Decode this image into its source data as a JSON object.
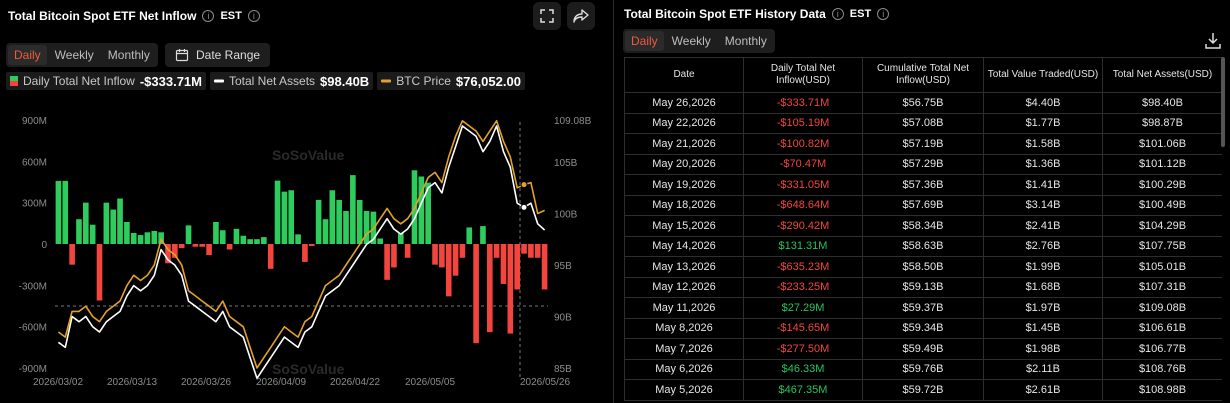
{
  "left_panel": {
    "title": "Total Bitcoin Spot ETF Net Inflow",
    "timezone": "EST",
    "tabs": [
      "Daily",
      "Weekly",
      "Monthly"
    ],
    "active_tab": "Daily",
    "date_range_label": "Date Range",
    "legend": {
      "inflow_label": "Daily Total Net Inflow",
      "inflow_value": "-$333.71M",
      "assets_label": "Total Net Assets",
      "assets_value": "$98.40B",
      "btc_label": "BTC Price",
      "btc_value": "$76,052.00"
    },
    "watermark": "SoSoValue"
  },
  "chart_data": {
    "type": "bar",
    "x_ticks": [
      "2026/03/02",
      "2026/03/13",
      "2026/03/26",
      "2026/04/09",
      "2026/04/22",
      "2026/05/05",
      "2026/05/26"
    ],
    "y_left_ticks": [
      "900M",
      "600M",
      "300M",
      "0",
      "-300M",
      "-600M",
      "-900M"
    ],
    "y_left_range": [
      -900,
      900
    ],
    "y_right_ticks": [
      "109.08B",
      "105B",
      "100B",
      "95B",
      "90B",
      "85B"
    ],
    "y_right_range": [
      85,
      109.08
    ],
    "grid": false,
    "series": [
      {
        "name": "Daily Total Net Inflow",
        "unit": "M",
        "values": [
          458,
          458,
          -150,
          180,
          300,
          140,
          -410,
          300,
          250,
          330,
          160,
          80,
          65,
          85,
          95,
          85,
          -140,
          -100,
          -30,
          135,
          -20,
          -20,
          -80,
          160,
          100,
          -40,
          110,
          60,
          35,
          35,
          50,
          -180,
          460,
          380,
          390,
          70,
          -130,
          -15,
          320,
          180,
          390,
          320,
          240,
          500,
          320,
          240,
          235,
          40,
          -260,
          -170,
          80,
          -100,
          535,
          490,
          445,
          -150,
          -170,
          -380,
          -230,
          -100,
          120,
          -720,
          130,
          -640,
          -100,
          -290,
          -650,
          -330,
          -70,
          -100,
          -100,
          -330
        ]
      },
      {
        "name": "Total Net Assets",
        "unit": "B",
        "values": [
          87.5,
          87.0,
          90.0,
          89.5,
          90.0,
          89.0,
          88.5,
          89.5,
          90.0,
          90.5,
          92.0,
          93.0,
          92.5,
          93.0,
          94.0,
          96.5,
          95.5,
          95.0,
          94.0,
          91.5,
          91.0,
          90.5,
          90.0,
          89.5,
          90.5,
          89.0,
          88.5,
          88.0,
          86.0,
          84.0,
          85.0,
          86.0,
          87.0,
          88.0,
          87.5,
          87.0,
          88.5,
          89.0,
          90.5,
          92.0,
          92.5,
          93.0,
          94.0,
          95.0,
          96.0,
          97.0,
          97.5,
          98.5,
          99.5,
          98.5,
          98.0,
          98.5,
          99.5,
          101.0,
          102.5,
          103.0,
          102.0,
          104.5,
          106.5,
          108.5,
          108.0,
          107.5,
          106.0,
          107.0,
          108.5,
          106.0,
          104.5,
          101.0,
          100.6,
          101.0,
          99.0,
          98.4
        ]
      },
      {
        "name": "BTC Price",
        "unit": "B-axis",
        "values": [
          88.5,
          88.0,
          90.5,
          90.5,
          91.0,
          90.0,
          89.5,
          90.5,
          91.0,
          91.5,
          93.0,
          94.0,
          93.5,
          94.0,
          95.0,
          97.5,
          96.5,
          96.0,
          95.0,
          92.5,
          92.0,
          91.5,
          91.0,
          90.5,
          91.5,
          90.0,
          89.5,
          89.0,
          87.0,
          85.0,
          86.0,
          87.0,
          88.0,
          89.0,
          88.5,
          88.0,
          89.5,
          90.0,
          91.5,
          93.0,
          93.5,
          94.0,
          95.0,
          96.0,
          97.0,
          98.0,
          98.5,
          99.5,
          100.5,
          99.5,
          99.0,
          99.5,
          100.5,
          102.0,
          103.5,
          104.0,
          103.0,
          105.5,
          107.5,
          109.0,
          108.5,
          108.0,
          107.0,
          108.0,
          109.0,
          107.0,
          105.5,
          102.5,
          102.8,
          103.0,
          100.0,
          100.3
        ]
      }
    ],
    "colors": {
      "positive": "#2ecc5c",
      "negative": "#f2453d",
      "assets_line": "#ffffff",
      "btc_line": "#e3a12b"
    }
  },
  "right_panel": {
    "title": "Total Bitcoin Spot ETF History Data",
    "timezone": "EST",
    "tabs": [
      "Daily",
      "Weekly",
      "Monthly"
    ],
    "active_tab": "Daily",
    "columns": [
      "Date",
      "Daily Total Net Inflow(USD)",
      "Cumulative Total Net Inflow(USD)",
      "Total Value Traded(USD)",
      "Total Net Assets(USD)"
    ],
    "rows": [
      [
        "May 26,2026",
        "-$333.71M",
        "$56.75B",
        "$4.40B",
        "$98.40B"
      ],
      [
        "May 22,2026",
        "-$105.19M",
        "$57.08B",
        "$1.77B",
        "$98.87B"
      ],
      [
        "May 21,2026",
        "-$100.82M",
        "$57.19B",
        "$1.58B",
        "$101.06B"
      ],
      [
        "May 20,2026",
        "-$70.47M",
        "$57.29B",
        "$1.36B",
        "$101.12B"
      ],
      [
        "May 19,2026",
        "-$331.05M",
        "$57.36B",
        "$1.41B",
        "$100.29B"
      ],
      [
        "May 18,2026",
        "-$648.64M",
        "$57.69B",
        "$3.14B",
        "$100.49B"
      ],
      [
        "May 15,2026",
        "-$290.42M",
        "$58.34B",
        "$2.41B",
        "$104.29B"
      ],
      [
        "May 14,2026",
        "$131.31M",
        "$58.63B",
        "$2.76B",
        "$107.75B"
      ],
      [
        "May 13,2026",
        "-$635.23M",
        "$58.50B",
        "$1.99B",
        "$105.01B"
      ],
      [
        "May 12,2026",
        "-$233.25M",
        "$59.13B",
        "$1.68B",
        "$107.31B"
      ],
      [
        "May 11,2026",
        "$27.29M",
        "$59.37B",
        "$1.97B",
        "$109.08B"
      ],
      [
        "May 8,2026",
        "-$145.65M",
        "$59.34B",
        "$1.45B",
        "$106.61B"
      ],
      [
        "May 7,2026",
        "-$277.50M",
        "$59.49B",
        "$1.98B",
        "$106.77B"
      ],
      [
        "May 6,2026",
        "$46.33M",
        "$59.76B",
        "$2.11B",
        "$108.76B"
      ],
      [
        "May 5,2026",
        "$467.35M",
        "$59.72B",
        "$2.61B",
        "$108.98B"
      ]
    ]
  }
}
